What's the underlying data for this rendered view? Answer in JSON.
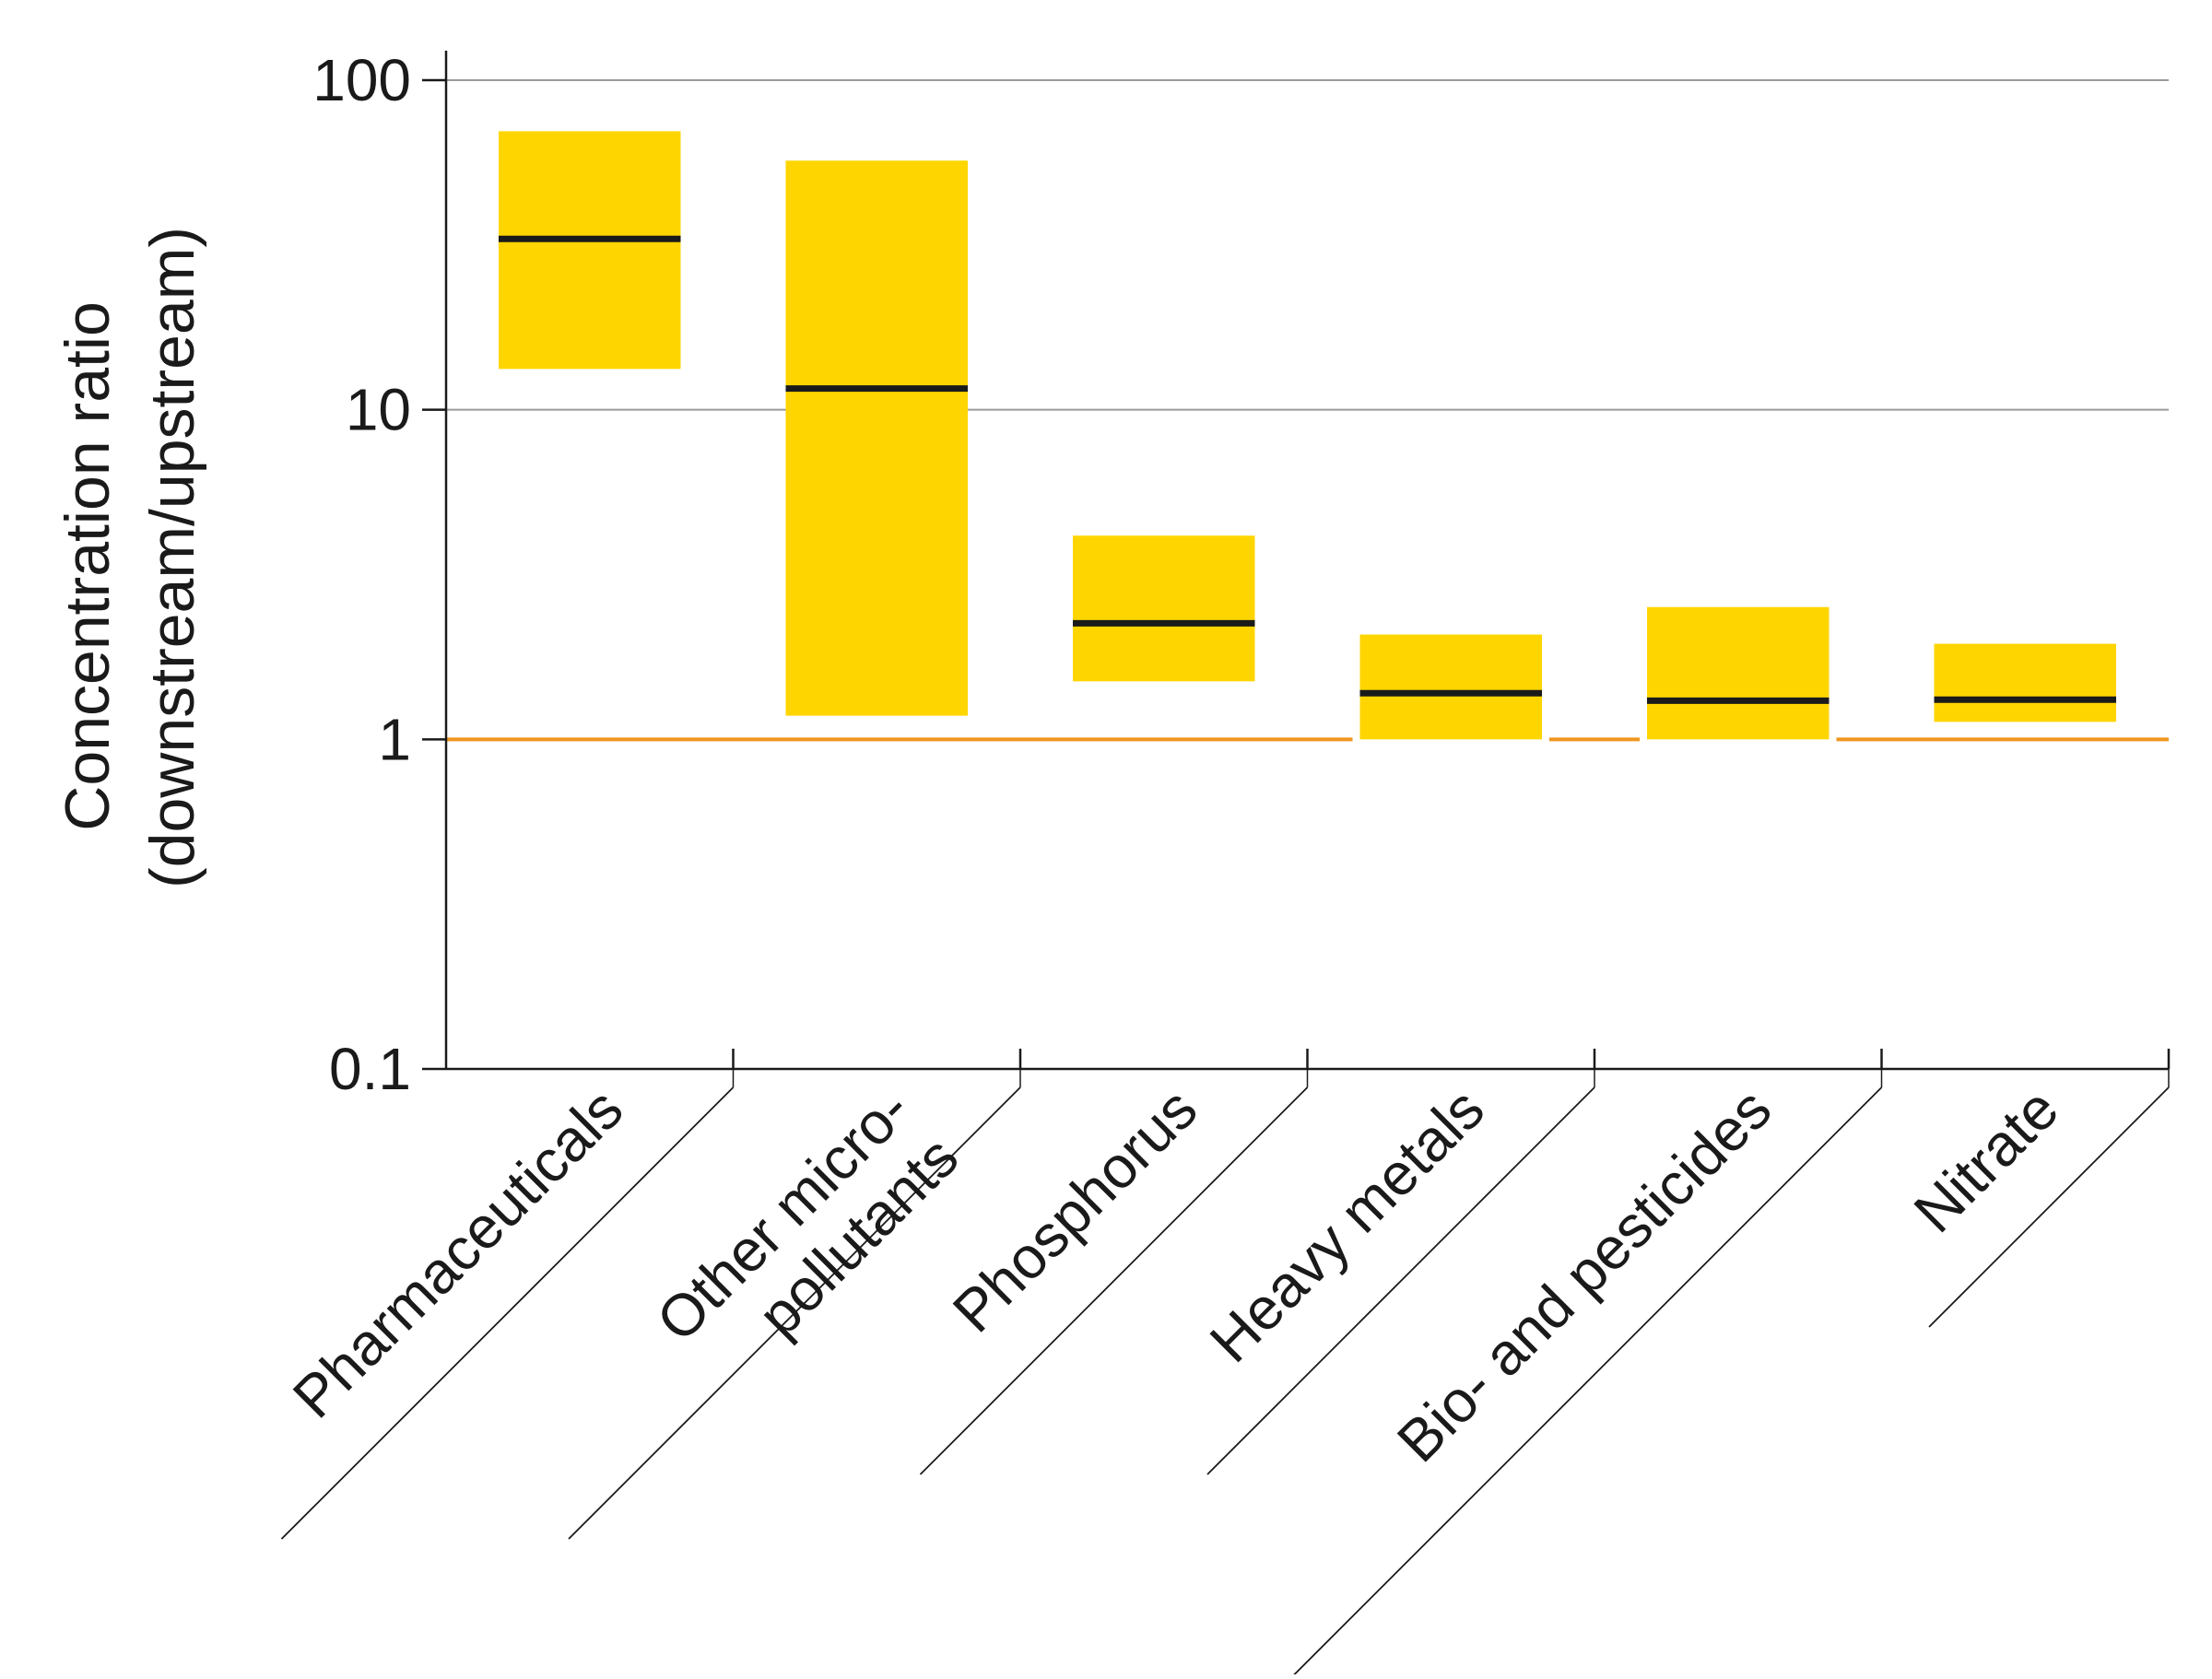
{
  "colors": {
    "box_fill": "#FFD500",
    "median_line": "#1a1a1a",
    "reference_line": "#F0961E",
    "reference_label": "#F0961E",
    "grid": "#9a9a9a",
    "axis": "#1a1a1a",
    "text": "#1a1a1a"
  },
  "chart_data": {
    "type": "bar",
    "subtype": "range-box",
    "y_scale": "log",
    "ylim": [
      0.1,
      100
    ],
    "ylabel_lines": [
      "Concentration ratio",
      "(downstream/upstream)"
    ],
    "y_ticks": [
      {
        "value": 100,
        "label": "100"
      },
      {
        "value": 10,
        "label": "10"
      },
      {
        "value": 1,
        "label": "1",
        "highlight": true
      },
      {
        "value": 0.1,
        "label": "0.1"
      }
    ],
    "gridlines_at": [
      100,
      10
    ],
    "reference_line": 1,
    "categories": [
      {
        "lines": [
          "Pharmaceuticals"
        ],
        "low": 13.3,
        "median": 33,
        "high": 70
      },
      {
        "lines": [
          "Other micro-",
          "pollutants"
        ],
        "low": 1.18,
        "median": 11.6,
        "high": 57
      },
      {
        "lines": [
          "Phosphorus"
        ],
        "low": 1.5,
        "median": 2.25,
        "high": 4.15
      },
      {
        "lines": [
          "Heavy metals"
        ],
        "low": 1.0,
        "median": 1.38,
        "high": 2.08
      },
      {
        "lines": [
          "Bio- and pesticides"
        ],
        "low": 1.0,
        "median": 1.31,
        "high": 2.52
      },
      {
        "lines": [
          "Nitrate"
        ],
        "low": 1.13,
        "median": 1.32,
        "high": 1.95
      }
    ]
  }
}
